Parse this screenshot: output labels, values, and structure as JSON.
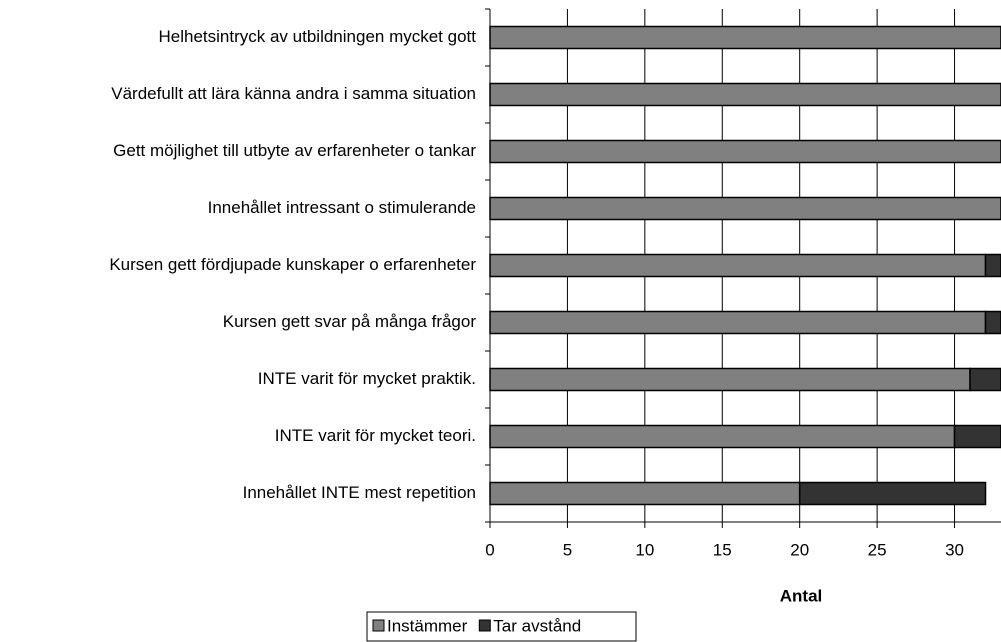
{
  "chart_data": {
    "type": "stacked_barh",
    "x_label": "Antal",
    "categories": [
      "Helhetsintryck av utbildningen mycket gott",
      "Värdefullt att lära känna andra i samma situation",
      "Gett möjlighet till utbyte av erfarenheter o tankar",
      "Innehållet intressant o stimulerande",
      "Kursen gett fördjupade kunskaper o erfarenheter",
      "Kursen gett svar på många frågor",
      "INTE varit för mycket praktik.",
      "INTE varit för mycket teori.",
      "Innehållet INTE mest repetition"
    ],
    "series": [
      {
        "name": "Instämmer",
        "color": "#808080",
        "values": [
          33,
          33,
          33,
          33,
          32,
          32,
          31,
          30,
          20
        ]
      },
      {
        "name": "Tar avstånd",
        "color": "#333333",
        "values": [
          0,
          0,
          0,
          0,
          1,
          1,
          2,
          3,
          12
        ]
      }
    ],
    "xlim": [
      0,
      33
    ],
    "xticks": [
      0,
      5,
      10,
      15,
      20,
      25,
      30
    ],
    "grid": true,
    "legend": "bottom"
  }
}
